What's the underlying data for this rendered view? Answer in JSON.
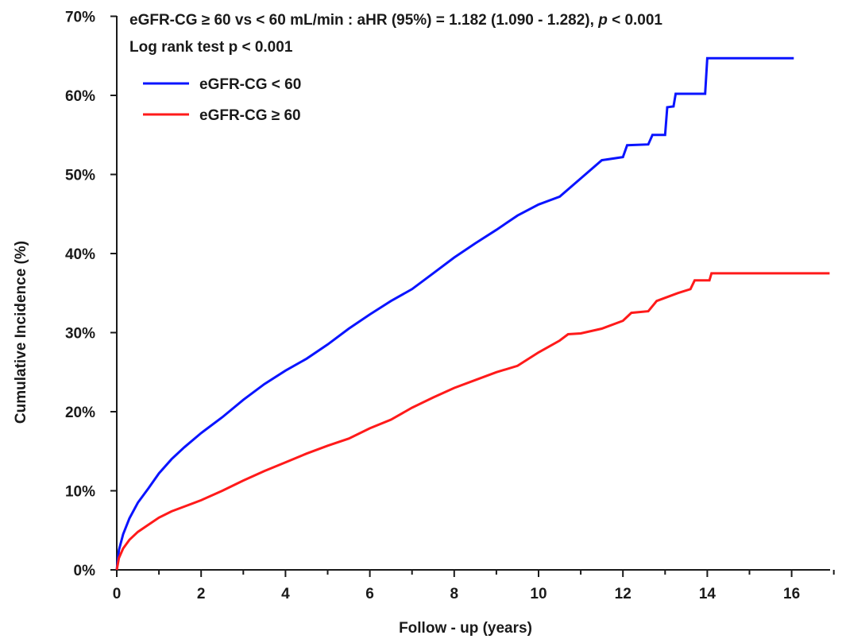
{
  "chart_data": {
    "type": "line",
    "title": "",
    "xlabel": "Follow - up (years)",
    "ylabel": "Cumulative Incidence (%)",
    "xlim": [
      0,
      17
    ],
    "ylim": [
      0,
      70
    ],
    "x_ticks": [
      0,
      2,
      4,
      6,
      8,
      10,
      12,
      14,
      16
    ],
    "x_tick_labels": [
      "0",
      "2",
      "4",
      "6",
      "8",
      "10",
      "12",
      "14",
      "16"
    ],
    "y_ticks": [
      0,
      10,
      20,
      30,
      40,
      50,
      60,
      70
    ],
    "y_tick_labels": [
      "0%",
      "10%",
      "20%",
      "30%",
      "40%",
      "50%",
      "60%",
      "70%"
    ],
    "grid": false,
    "legend_position": "top-left",
    "annotations": {
      "line1_main": "eGFR-CG ≥ 60 vs < 60 mL/min : aHR (95%) = 1.182 (1.090 - 1.282), ",
      "line1_p": "p",
      "line1_tail": " < 0.001",
      "line2": "Log rank test p < 0.001"
    },
    "series": [
      {
        "name": "eGFR-CG < 60",
        "color": "#0a14ff",
        "step": false,
        "points": [
          [
            0,
            0
          ],
          [
            0.05,
            2.5
          ],
          [
            0.15,
            4.5
          ],
          [
            0.3,
            6.5
          ],
          [
            0.5,
            8.5
          ],
          [
            0.75,
            10.3
          ],
          [
            1.0,
            12.2
          ],
          [
            1.3,
            14.0
          ],
          [
            1.6,
            15.5
          ],
          [
            2.0,
            17.3
          ],
          [
            2.5,
            19.3
          ],
          [
            3.0,
            21.5
          ],
          [
            3.5,
            23.5
          ],
          [
            4.0,
            25.2
          ],
          [
            4.5,
            26.7
          ],
          [
            5.0,
            28.5
          ],
          [
            5.5,
            30.5
          ],
          [
            6.0,
            32.3
          ],
          [
            6.5,
            34.0
          ],
          [
            7.0,
            35.5
          ],
          [
            7.5,
            37.5
          ],
          [
            8.0,
            39.5
          ],
          [
            8.5,
            41.3
          ],
          [
            9.0,
            43.0
          ],
          [
            9.5,
            44.8
          ],
          [
            10.0,
            46.2
          ],
          [
            10.5,
            47.2
          ],
          [
            11.0,
            49.5
          ],
          [
            11.5,
            51.8
          ],
          [
            12.0,
            52.2
          ],
          [
            12.1,
            53.7
          ],
          [
            12.6,
            53.8
          ],
          [
            12.7,
            55.0
          ],
          [
            13.0,
            55.0
          ],
          [
            13.05,
            58.5
          ],
          [
            13.2,
            58.6
          ],
          [
            13.25,
            60.2
          ],
          [
            13.95,
            60.2
          ],
          [
            14.0,
            64.7
          ],
          [
            16.05,
            64.7
          ]
        ]
      },
      {
        "name": "eGFR-CG ≥ 60",
        "color": "#ff1a1a",
        "step": false,
        "points": [
          [
            0,
            0
          ],
          [
            0.05,
            1.5
          ],
          [
            0.15,
            2.7
          ],
          [
            0.3,
            3.8
          ],
          [
            0.5,
            4.8
          ],
          [
            0.75,
            5.7
          ],
          [
            1.0,
            6.6
          ],
          [
            1.3,
            7.4
          ],
          [
            1.6,
            8.0
          ],
          [
            2.0,
            8.8
          ],
          [
            2.5,
            10.0
          ],
          [
            3.0,
            11.3
          ],
          [
            3.5,
            12.5
          ],
          [
            4.0,
            13.6
          ],
          [
            4.5,
            14.7
          ],
          [
            5.0,
            15.7
          ],
          [
            5.5,
            16.6
          ],
          [
            6.0,
            17.9
          ],
          [
            6.5,
            19.0
          ],
          [
            7.0,
            20.5
          ],
          [
            7.5,
            21.8
          ],
          [
            8.0,
            23.0
          ],
          [
            8.5,
            24.0
          ],
          [
            9.0,
            25.0
          ],
          [
            9.5,
            25.8
          ],
          [
            10.0,
            27.5
          ],
          [
            10.5,
            29.0
          ],
          [
            10.7,
            29.8
          ],
          [
            11.0,
            29.9
          ],
          [
            11.5,
            30.5
          ],
          [
            12.0,
            31.5
          ],
          [
            12.2,
            32.5
          ],
          [
            12.6,
            32.7
          ],
          [
            12.8,
            34.0
          ],
          [
            13.3,
            35.0
          ],
          [
            13.6,
            35.5
          ],
          [
            13.7,
            36.6
          ],
          [
            14.05,
            36.6
          ],
          [
            14.1,
            37.5
          ],
          [
            16.9,
            37.5
          ]
        ]
      }
    ]
  }
}
